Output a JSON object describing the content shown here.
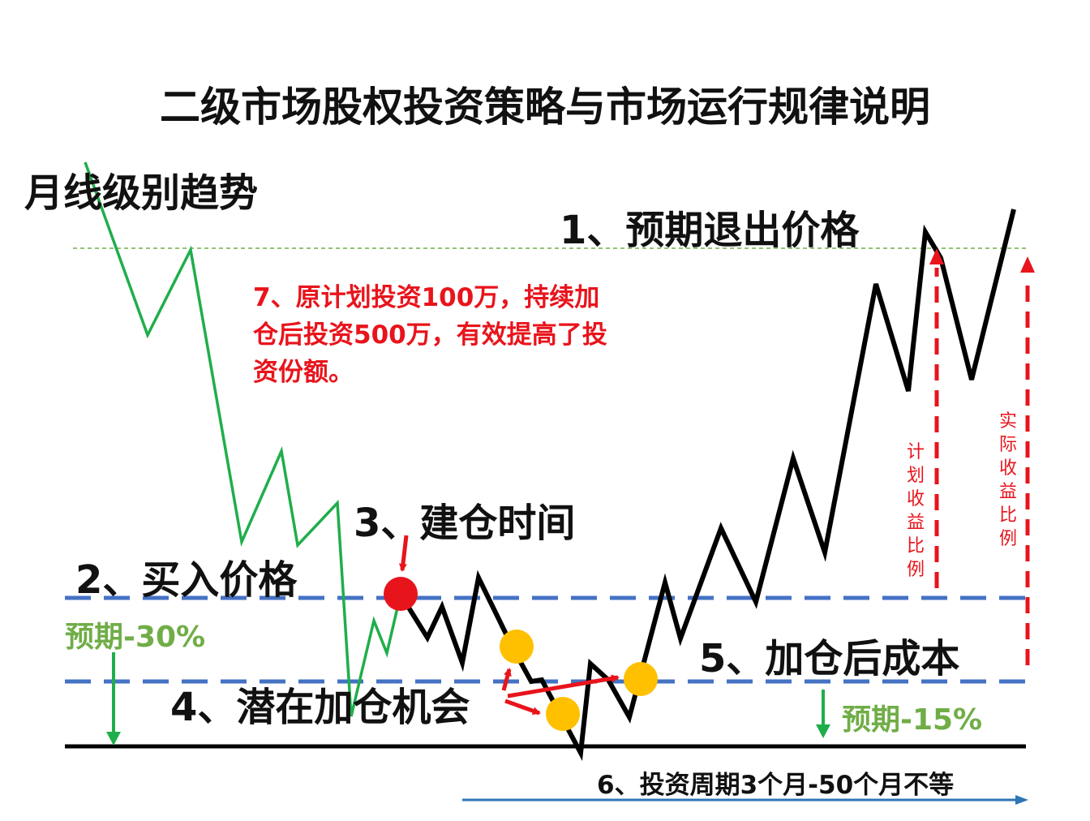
{
  "title": "二级市场股权投资策略与市场运行规律说明",
  "labels": {
    "trend": "月线级别趋势",
    "exit_price": "1、预期退出价格",
    "buy_price": "2、买入价格",
    "build_time": "3、建仓时间",
    "add_opportunity": "4、潜在加仓机会",
    "cost_after_add": "5、加仓后成本",
    "period": "6、投资周期3个月-50个月不等",
    "note": "7、原计划投资100万，持续加仓后投资500万，有效提高了投资份额。",
    "expect_30": "预期-30%",
    "expect_15": "预期-15%",
    "planned_return": "计划收益比例",
    "actual_return": "实际收益比例"
  },
  "colors": {
    "green_line": "#1fae4b",
    "black_line": "#000000",
    "blue_dash": "#4472c4",
    "red": "#e8141c",
    "orange_dot": "#ffc000",
    "green_text": "#70ad47",
    "arrow_blue": "#2e75b6"
  }
}
